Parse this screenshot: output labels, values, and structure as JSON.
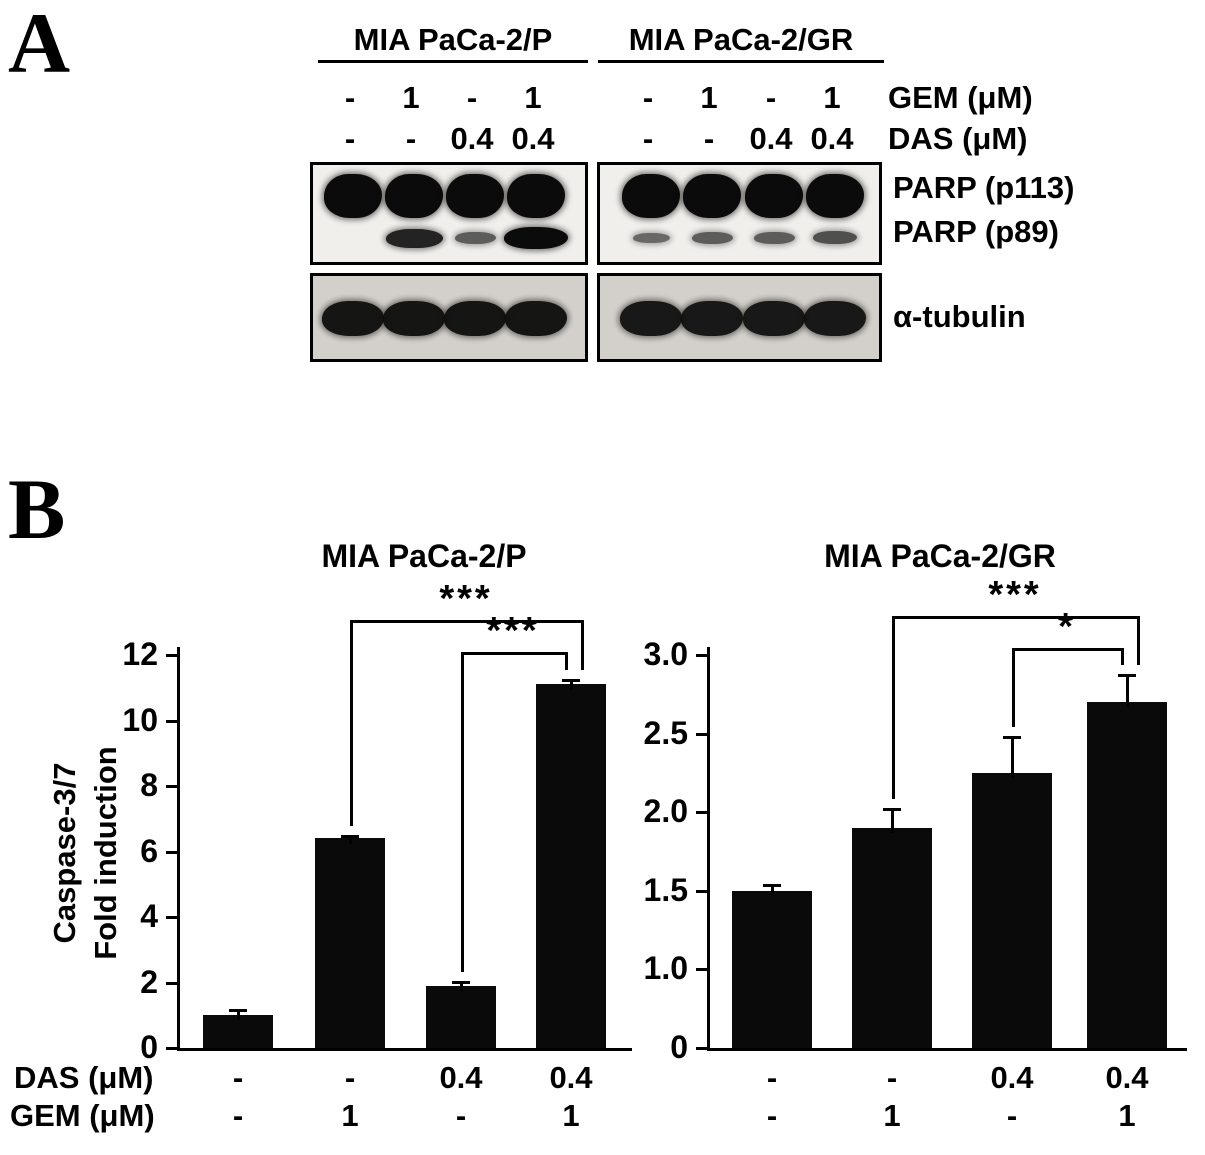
{
  "colors": {
    "foreground": "#000000",
    "background": "#ffffff",
    "bar_fill": "#0a0a0a"
  },
  "panel_a": {
    "label": "A",
    "groups": [
      {
        "name": "MIA PaCa-2/P",
        "gem": [
          "-",
          "1",
          "-",
          "1"
        ],
        "das": [
          "-",
          "-",
          "0.4",
          "0.4"
        ]
      },
      {
        "name": "MIA PaCa-2/GR",
        "gem": [
          "-",
          "1",
          "-",
          "1"
        ],
        "das": [
          "-",
          "-",
          "0.4",
          "0.4"
        ]
      }
    ],
    "gem_label": "GEM (μM)",
    "das_label": "DAS (μM)",
    "blot_labels": {
      "p113": "PARP (p113)",
      "p89": "PARP (p89)",
      "tubulin": "α-tubulin"
    },
    "bands": {
      "p113": [
        [
          1,
          1,
          1,
          1
        ],
        [
          1,
          1,
          1,
          1
        ]
      ],
      "p89": [
        [
          0,
          0.8,
          0.35,
          1
        ],
        [
          0.25,
          0.35,
          0.35,
          0.45
        ]
      ],
      "tubulin": [
        [
          0.95,
          0.95,
          0.95,
          0.95
        ],
        [
          0.93,
          0.93,
          0.93,
          0.93
        ]
      ]
    }
  },
  "panel_b": {
    "label": "B",
    "das_row_label": "DAS (μM)",
    "gem_row_label": "GEM (μM)"
  },
  "chart_data": [
    {
      "type": "bar",
      "title": "MIA PaCa-2/P",
      "ylabel_lines": [
        "Caspase-3/7",
        "Fold induction"
      ],
      "ylim": [
        0,
        12
      ],
      "yticks": [
        0,
        2,
        4,
        6,
        8,
        10,
        12
      ],
      "ytick_labels": [
        "0",
        "2",
        "4",
        "6",
        "8",
        "10",
        "12"
      ],
      "values": [
        1.0,
        6.4,
        1.9,
        11.1
      ],
      "errors": [
        0.15,
        0.08,
        0.12,
        0.15
      ],
      "das_values": [
        "-",
        "-",
        "0.4",
        "0.4"
      ],
      "gem_values": [
        "-",
        "1",
        "-",
        "1"
      ],
      "significance": [
        {
          "from": 1,
          "to": 3,
          "label": "***"
        },
        {
          "from": 2,
          "to": 3,
          "label": "***"
        }
      ],
      "grid": false,
      "bar_color": "#0a0a0a"
    },
    {
      "type": "bar",
      "title": "MIA PaCa-2/GR",
      "ylabel_lines": [],
      "ylim": [
        0,
        3.0
      ],
      "yticks": [
        0,
        1.0,
        1.5,
        2.0,
        2.5,
        3.0
      ],
      "ytick_labels": [
        "0",
        "1.0",
        "1.5",
        "2.0",
        "2.5",
        "3.0"
      ],
      "axis_note": "ticks equally spaced; scale compressed between 0 and 1.0",
      "values": [
        1.5,
        1.9,
        2.25,
        2.7
      ],
      "errors": [
        0.04,
        0.12,
        0.23,
        0.17
      ],
      "das_values": [
        "-",
        "-",
        "0.4",
        "0.4"
      ],
      "gem_values": [
        "-",
        "1",
        "-",
        "1"
      ],
      "significance": [
        {
          "from": 1,
          "to": 3,
          "label": "***"
        },
        {
          "from": 2,
          "to": 3,
          "label": "*"
        }
      ],
      "grid": false,
      "bar_color": "#0a0a0a"
    }
  ]
}
